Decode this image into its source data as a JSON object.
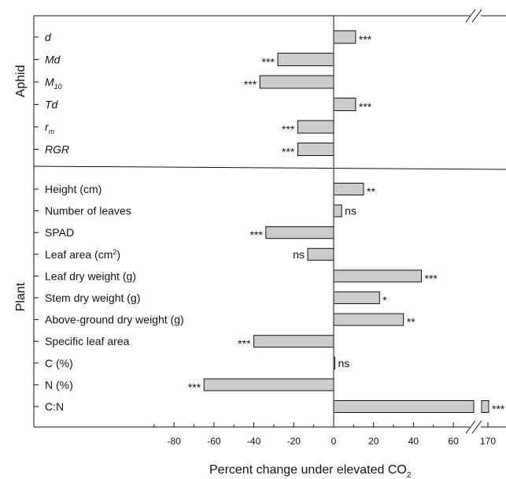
{
  "chart_data": {
    "type": "bar",
    "orientation": "horizontal",
    "xlabel": "Percent change under elevated CO",
    "xlabel_sub": "2",
    "xlim": [
      -100,
      75
    ],
    "xticks": [
      "-80",
      "-60",
      "-40",
      "-20",
      "0",
      "20",
      "40",
      "60"
    ],
    "broken_axis_tick": "170",
    "groups": [
      {
        "name": "Aphid",
        "items": [
          {
            "label": "d",
            "italic": true,
            "value": 11,
            "sig": "***"
          },
          {
            "label": "Md",
            "italic": true,
            "value": -28,
            "sig": "***"
          },
          {
            "label": "M",
            "sub": "10",
            "italic": true,
            "value": -37,
            "sig": "***"
          },
          {
            "label": "Td",
            "italic": true,
            "value": 11,
            "sig": "***"
          },
          {
            "label": "r",
            "sub": "m",
            "italic": true,
            "value": -18,
            "sig": "***"
          },
          {
            "label": "RGR",
            "italic": true,
            "value": -18,
            "sig": "***"
          }
        ]
      },
      {
        "name": "Plant",
        "items": [
          {
            "label": "Height (cm)",
            "value": 15,
            "sig": "**"
          },
          {
            "label": "Number of leaves",
            "value": 4,
            "sig": "ns"
          },
          {
            "label": "SPAD",
            "value": -34,
            "sig": "***"
          },
          {
            "label": "Leaf area (cm",
            "sup": "2",
            "label_end": ")",
            "value": -13,
            "sig": "ns"
          },
          {
            "label": "Leaf dry weight (g)",
            "value": 44,
            "sig": "***"
          },
          {
            "label": "Stem dry weight (g)",
            "value": 23,
            "sig": "*"
          },
          {
            "label": "Above-ground dry weight (g)",
            "value": 35,
            "sig": "**"
          },
          {
            "label": "Specific leaf area",
            "value": -40,
            "sig": "***"
          },
          {
            "label": "C (%)",
            "value": 0.5,
            "sig": "ns"
          },
          {
            "label": "N (%)",
            "value": -65,
            "sig": "***"
          },
          {
            "label": "C:N",
            "value": 172,
            "broken": true,
            "sig": "***"
          }
        ]
      }
    ],
    "bar_color": "#cccccc",
    "grid": false
  }
}
